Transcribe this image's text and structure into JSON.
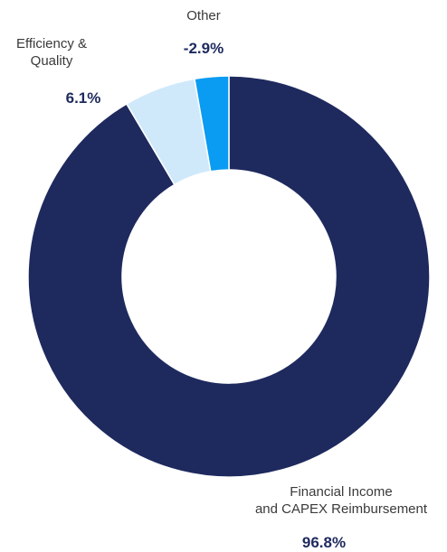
{
  "chart_data": {
    "type": "pie",
    "variant": "donut",
    "slices": [
      {
        "label": "Financial Income and CAPEX Reimbursement",
        "label_lines": [
          "Financial Income",
          "and CAPEX Reimbursement"
        ],
        "value": 96.8,
        "display": "96.8%",
        "color": "#1e2a5e"
      },
      {
        "label": "Efficiency & Quality",
        "label_lines": [
          "Efficiency &",
          "Quality"
        ],
        "value": 6.1,
        "display": "6.1%",
        "color": "#cfe9fb"
      },
      {
        "label": "Other",
        "label_lines": [
          "Other"
        ],
        "value": -2.9,
        "display": "-2.9%",
        "color": "#0a9bf2"
      }
    ],
    "legend": "none"
  }
}
